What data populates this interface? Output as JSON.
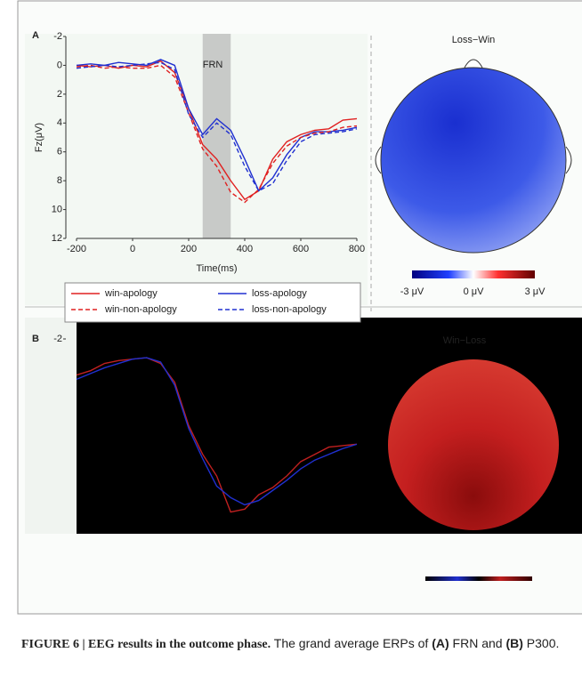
{
  "chart_data": [
    {
      "type": "line",
      "panel_label": "A",
      "title": "Loss−Win",
      "annotation": "FRN",
      "xlabel": "Time(ms)",
      "ylabel": "Fz(μV)",
      "x": [
        -200,
        -150,
        -100,
        -50,
        0,
        50,
        100,
        150,
        200,
        250,
        300,
        350,
        400,
        450,
        500,
        550,
        600,
        650,
        700,
        750,
        800
      ],
      "xlim": [
        -200,
        800
      ],
      "xticks": [
        -200,
        0,
        200,
        400,
        600,
        800
      ],
      "ylim": [
        -2,
        12
      ],
      "yticks": [
        -2,
        0,
        2,
        4,
        6,
        8,
        10,
        12
      ],
      "y_inverted": true,
      "shaded_x": [
        250,
        350
      ],
      "series": [
        {
          "name": "win-apology",
          "color": "#e02020",
          "dash": false,
          "values": [
            0,
            0.1,
            0,
            0.2,
            0,
            0.1,
            -0.3,
            0.5,
            3,
            5.5,
            6.5,
            8,
            9.3,
            8.7,
            6.5,
            5.3,
            4.8,
            4.5,
            4.4,
            3.8,
            3.7
          ]
        },
        {
          "name": "loss-apology",
          "color": "#2030d0",
          "dash": false,
          "values": [
            0,
            -0.1,
            0,
            -0.2,
            -0.1,
            0,
            -0.4,
            0,
            3,
            4.8,
            3.7,
            4.5,
            6.5,
            8.7,
            7.8,
            6.2,
            5,
            4.6,
            4.6,
            4.5,
            4.3
          ]
        },
        {
          "name": "win-non-apology",
          "color": "#e02020",
          "dash": true,
          "values": [
            0.1,
            0,
            0.2,
            0.1,
            0.2,
            0.2,
            0,
            0.8,
            3.3,
            5.8,
            7,
            8.8,
            9.5,
            8.6,
            6.8,
            5.6,
            5,
            4.7,
            4.6,
            4.3,
            4.2
          ]
        },
        {
          "name": "loss-non-apology",
          "color": "#2030d0",
          "dash": true,
          "values": [
            0.2,
            0.1,
            0,
            0.1,
            0,
            -0.1,
            -0.2,
            0.3,
            3.4,
            5,
            4,
            4.8,
            7,
            8.7,
            8.2,
            6.6,
            5.3,
            4.8,
            4.7,
            4.6,
            4.4
          ]
        }
      ],
      "colorbar_labels": [
        "-3 μV",
        "0 μV",
        "3 μV"
      ]
    },
    {
      "type": "line",
      "panel_label": "B",
      "title": "Win−Loss",
      "x": [
        -200,
        -150,
        -100,
        -50,
        0,
        50,
        100,
        150,
        200,
        250,
        300,
        350,
        400,
        450,
        500,
        550,
        600,
        650,
        700,
        750,
        800
      ],
      "xlim": [
        -200,
        800
      ],
      "ylim": [
        -2,
        12
      ],
      "yticks": [
        -2
      ],
      "y_inverted": true,
      "series": [
        {
          "color": "#c02020",
          "dash": false,
          "values": [
            0.5,
            0.2,
            -0.3,
            -0.5,
            -0.6,
            -0.7,
            -0.3,
            1,
            4,
            6,
            7.5,
            10,
            9.8,
            8.8,
            8.3,
            7.5,
            6.5,
            6,
            5.5,
            5.4,
            5.3
          ]
        },
        {
          "color": "#2030d0",
          "dash": false,
          "values": [
            0.8,
            0.4,
            0,
            -0.3,
            -0.6,
            -0.7,
            -0.4,
            1.2,
            4.2,
            6.3,
            8.2,
            9,
            9.5,
            9.2,
            8.5,
            7.8,
            7,
            6.4,
            6,
            5.6,
            5.3
          ]
        }
      ]
    }
  ],
  "caption": {
    "label": "FIGURE 6 | EEG results in the outcome phase.",
    "text1": "The grand average ERPs of",
    "a": "(A)",
    "text2": "FRN and",
    "b": "(B)",
    "text3": "P300."
  }
}
